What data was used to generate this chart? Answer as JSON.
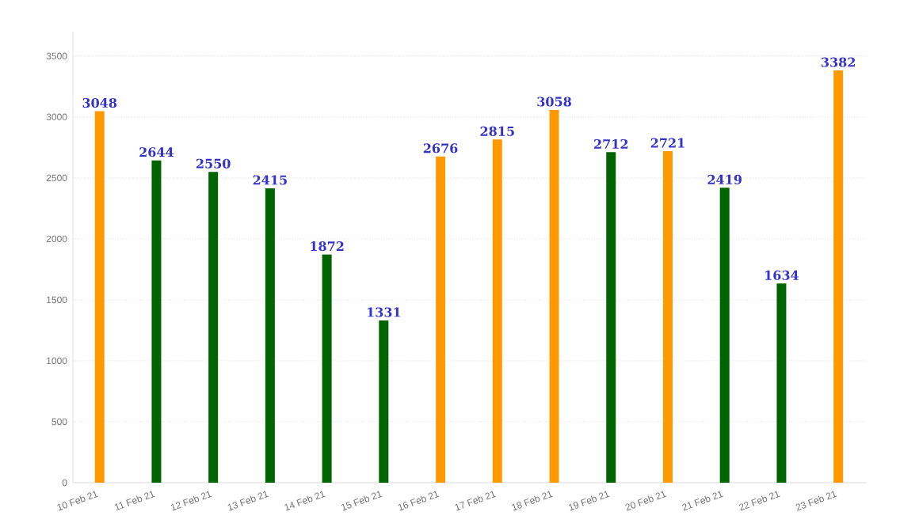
{
  "chart_data": {
    "type": "bar",
    "categories": [
      "10 Feb 21",
      "11 Feb 21",
      "12 Feb 21",
      "13 Feb 21",
      "14 Feb 21",
      "15 Feb 21",
      "16 Feb 21",
      "17 Feb 21",
      "18 Feb 21",
      "19 Feb 21",
      "20 Feb 21",
      "21 Feb 21",
      "22 Feb 21",
      "23 Feb 21"
    ],
    "values": [
      3048,
      2644,
      2550,
      2415,
      1872,
      1331,
      2676,
      2815,
      3058,
      2712,
      2721,
      2419,
      1634,
      3382
    ],
    "colors": [
      "#ff9900",
      "#006400",
      "#006400",
      "#006400",
      "#006400",
      "#006400",
      "#ff9900",
      "#ff9900",
      "#ff9900",
      "#006400",
      "#ff9900",
      "#006400",
      "#006400",
      "#ff9900"
    ],
    "ylim": [
      0,
      3700
    ],
    "yticks": [
      0,
      500,
      1000,
      1500,
      2000,
      2500,
      3000,
      3500
    ],
    "grid": "y",
    "data_labels": true
  }
}
